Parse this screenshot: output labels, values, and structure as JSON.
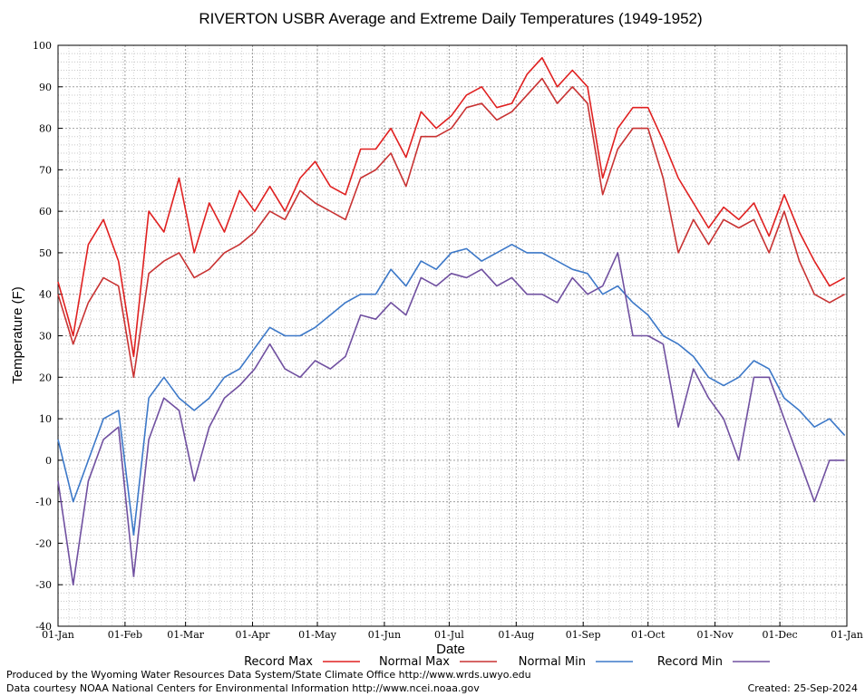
{
  "chart_data": {
    "type": "line",
    "title": "RIVERTON USBR Average and Extreme Daily Temperatures (1949-1952)",
    "xlabel": "Date",
    "ylabel": "Temperature (F)",
    "ylim": [
      -40,
      100
    ],
    "yticks": [
      -40,
      -30,
      -20,
      -10,
      0,
      10,
      20,
      30,
      40,
      50,
      60,
      70,
      80,
      90,
      100
    ],
    "xticks": [
      {
        "label": "01-Jan",
        "day": 1
      },
      {
        "label": "01-Feb",
        "day": 32
      },
      {
        "label": "01-Mar",
        "day": 60
      },
      {
        "label": "01-Apr",
        "day": 91
      },
      {
        "label": "01-May",
        "day": 121
      },
      {
        "label": "01-Jun",
        "day": 152
      },
      {
        "label": "01-Jul",
        "day": 182
      },
      {
        "label": "01-Aug",
        "day": 213
      },
      {
        "label": "01-Sep",
        "day": 244
      },
      {
        "label": "01-Oct",
        "day": 274
      },
      {
        "label": "01-Nov",
        "day": 305
      },
      {
        "label": "01-Dec",
        "day": 335
      },
      {
        "label": "01-Jan",
        "day": 366
      }
    ],
    "xlim": [
      1,
      366
    ],
    "grid": true,
    "legend_position": "bottom",
    "series": [
      {
        "name": "Record Max",
        "color": "#e02020",
        "x": [
          1,
          8,
          15,
          22,
          29,
          36,
          43,
          50,
          57,
          64,
          71,
          78,
          85,
          92,
          99,
          106,
          113,
          120,
          127,
          134,
          141,
          148,
          155,
          162,
          169,
          176,
          183,
          190,
          197,
          204,
          211,
          218,
          225,
          232,
          239,
          246,
          253,
          260,
          267,
          274,
          281,
          288,
          295,
          302,
          309,
          316,
          323,
          330,
          337,
          344,
          351,
          358,
          365
        ],
        "values": [
          43,
          30,
          52,
          58,
          48,
          25,
          60,
          55,
          68,
          50,
          62,
          55,
          65,
          60,
          66,
          60,
          68,
          72,
          66,
          64,
          75,
          75,
          80,
          73,
          84,
          80,
          83,
          88,
          90,
          85,
          86,
          93,
          97,
          90,
          94,
          90,
          68,
          80,
          85,
          85,
          77,
          68,
          62,
          56,
          61,
          58,
          62,
          54,
          64,
          55,
          48,
          42,
          44
        ]
      },
      {
        "name": "Normal Max",
        "color": "#c83232",
        "x": [
          1,
          8,
          15,
          22,
          29,
          36,
          43,
          50,
          57,
          64,
          71,
          78,
          85,
          92,
          99,
          106,
          113,
          120,
          127,
          134,
          141,
          148,
          155,
          162,
          169,
          176,
          183,
          190,
          197,
          204,
          211,
          218,
          225,
          232,
          239,
          246,
          253,
          260,
          267,
          274,
          281,
          288,
          295,
          302,
          309,
          316,
          323,
          330,
          337,
          344,
          351,
          358,
          365
        ],
        "values": [
          40,
          28,
          38,
          44,
          42,
          20,
          45,
          48,
          50,
          44,
          46,
          50,
          52,
          55,
          60,
          58,
          65,
          62,
          60,
          58,
          68,
          70,
          74,
          66,
          78,
          78,
          80,
          85,
          86,
          82,
          84,
          88,
          92,
          86,
          90,
          86,
          64,
          75,
          80,
          80,
          68,
          50,
          58,
          52,
          58,
          56,
          58,
          50,
          60,
          48,
          40,
          38,
          40
        ]
      },
      {
        "name": "Normal Min",
        "color": "#3c78c8",
        "x": [
          1,
          8,
          15,
          22,
          29,
          36,
          43,
          50,
          57,
          64,
          71,
          78,
          85,
          92,
          99,
          106,
          113,
          120,
          127,
          134,
          141,
          148,
          155,
          162,
          169,
          176,
          183,
          190,
          197,
          204,
          211,
          218,
          225,
          232,
          239,
          246,
          253,
          260,
          267,
          274,
          281,
          288,
          295,
          302,
          309,
          316,
          323,
          330,
          337,
          344,
          351,
          358,
          365
        ],
        "values": [
          5,
          -10,
          0,
          10,
          12,
          -18,
          15,
          20,
          15,
          12,
          15,
          20,
          22,
          27,
          32,
          30,
          30,
          32,
          35,
          38,
          40,
          40,
          46,
          42,
          48,
          46,
          50,
          51,
          48,
          50,
          52,
          50,
          50,
          48,
          46,
          45,
          40,
          42,
          38,
          35,
          30,
          28,
          25,
          20,
          18,
          20,
          24,
          22,
          15,
          12,
          8,
          10,
          6
        ]
      },
      {
        "name": "Record Min",
        "color": "#7050a0",
        "x": [
          1,
          8,
          15,
          22,
          29,
          36,
          43,
          50,
          57,
          64,
          71,
          78,
          85,
          92,
          99,
          106,
          113,
          120,
          127,
          134,
          141,
          148,
          155,
          162,
          169,
          176,
          183,
          190,
          197,
          204,
          211,
          218,
          225,
          232,
          239,
          246,
          253,
          260,
          267,
          274,
          281,
          288,
          295,
          302,
          309,
          316,
          323,
          330,
          337,
          344,
          351,
          358,
          365
        ],
        "values": [
          -5,
          -30,
          -5,
          5,
          8,
          -28,
          5,
          15,
          12,
          -5,
          8,
          15,
          18,
          22,
          28,
          22,
          20,
          24,
          22,
          25,
          35,
          34,
          38,
          35,
          44,
          42,
          45,
          44,
          46,
          42,
          44,
          40,
          40,
          38,
          44,
          40,
          42,
          50,
          30,
          30,
          28,
          8,
          22,
          15,
          10,
          0,
          20,
          20,
          10,
          0,
          -10,
          0,
          0
        ]
      }
    ]
  },
  "footer": {
    "credit_line1": "Produced by the Wyoming Water Resources Data System/State Climate Office http://www.wrds.uwyo.edu",
    "credit_line2": "Data courtesy NOAA National Centers for Environmental Information http://www.ncei.noaa.gov",
    "created": "Created:  25-Sep-2024"
  }
}
